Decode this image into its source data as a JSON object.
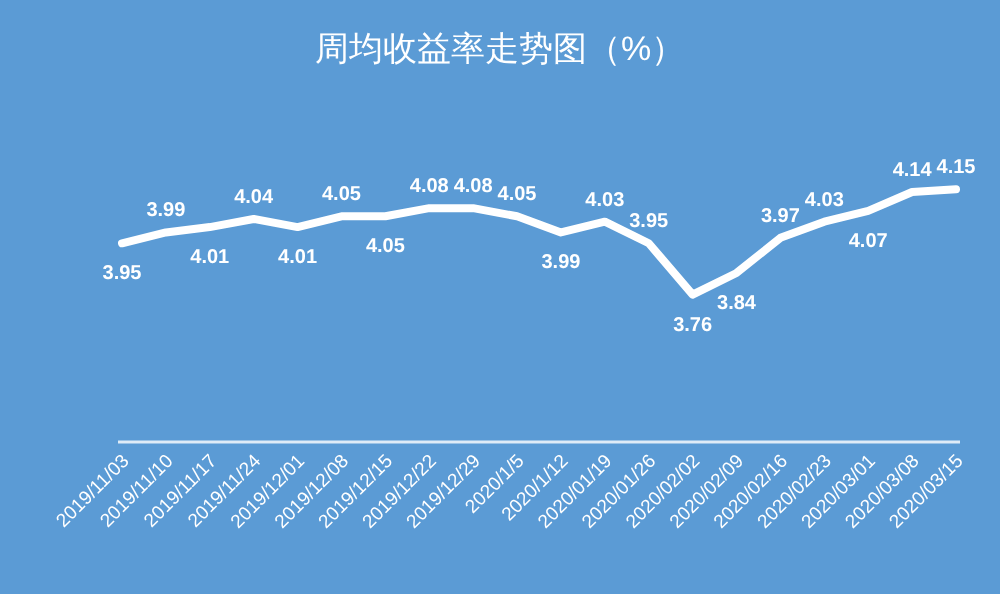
{
  "chart_data": {
    "type": "line",
    "title": "周均收益率走势图（%）",
    "color": "#ffffff",
    "categories": [
      "2019/11/03",
      "2019/11/10",
      "2019/11/17",
      "2019/11/24",
      "2019/12/01",
      "2019/12/08",
      "2019/12/15",
      "2019/12/22",
      "2019/12/29",
      "2020/1/5",
      "2020/1/12",
      "2020/01/19",
      "2020/01/26",
      "2020/02/02",
      "2020/02/09",
      "2020/02/16",
      "2020/02/23",
      "2020/03/01",
      "2020/03/08",
      "2020/03/15"
    ],
    "values": [
      3.95,
      3.99,
      4.01,
      4.04,
      4.01,
      4.05,
      4.05,
      4.08,
      4.08,
      4.05,
      3.99,
      4.03,
      3.95,
      3.76,
      3.84,
      3.97,
      4.03,
      4.07,
      4.14,
      4.15
    ],
    "data_labels": true,
    "marker": "none"
  }
}
